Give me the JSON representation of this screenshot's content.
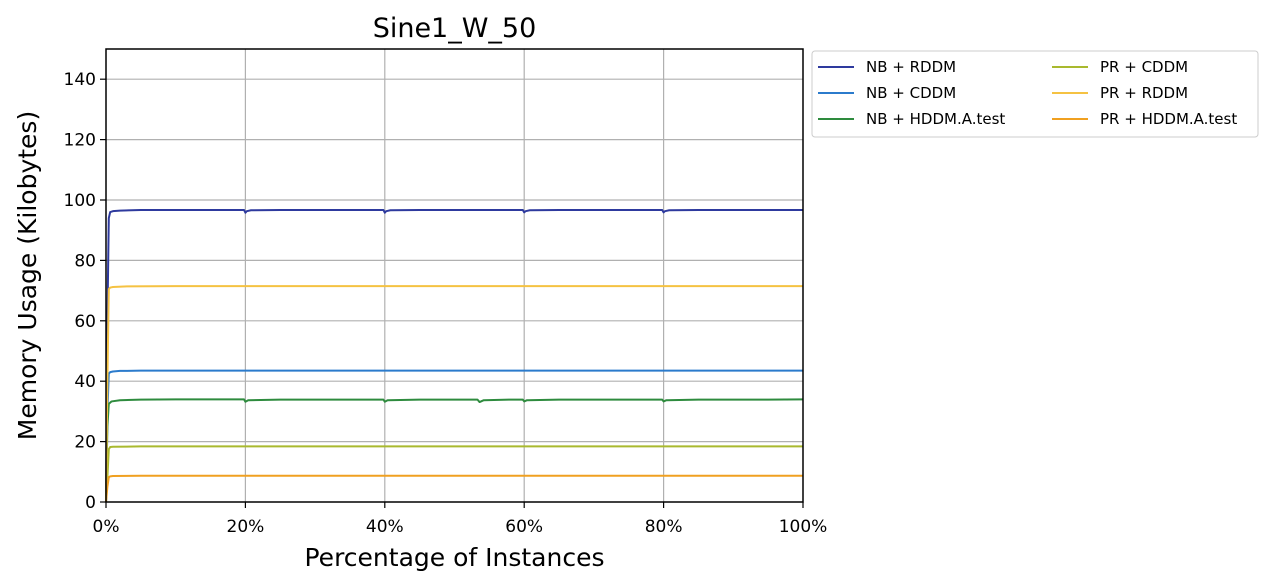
{
  "chart_data": {
    "type": "line",
    "title": "Sine1_W_50",
    "xlabel": "Percentage of Instances",
    "ylabel": "Memory Usage (Kilobytes)",
    "xlim": [
      0,
      100
    ],
    "ylim": [
      0,
      150
    ],
    "xticks": [
      0,
      20,
      40,
      60,
      80,
      100
    ],
    "xtick_labels": [
      "0%",
      "20%",
      "40%",
      "60%",
      "80%",
      "100%"
    ],
    "yticks": [
      0,
      20,
      40,
      60,
      80,
      100,
      120,
      140
    ],
    "ytick_labels": [
      "0",
      "20",
      "40",
      "60",
      "80",
      "100",
      "120",
      "140"
    ],
    "grid": true,
    "legend_position": "outside-right-top",
    "legend_columns": 2,
    "series": [
      {
        "name": "NB + RDDM",
        "color": "#2e3a9e",
        "x": [
          0,
          0.2,
          0.4,
          0.6,
          1,
          2,
          5,
          10,
          19.8,
          20,
          20.2,
          20.8,
          25,
          30,
          39.8,
          40,
          40.2,
          40.8,
          45,
          50,
          59.8,
          60,
          60.2,
          60.8,
          65,
          70,
          79.8,
          80,
          80.2,
          80.8,
          85,
          90,
          95,
          100
        ],
        "y": [
          0,
          60,
          94,
          96,
          96.3,
          96.5,
          96.7,
          96.7,
          96.7,
          95.8,
          96.3,
          96.6,
          96.7,
          96.7,
          96.7,
          95.8,
          96.3,
          96.6,
          96.7,
          96.7,
          96.7,
          95.9,
          96.3,
          96.6,
          96.7,
          96.7,
          96.7,
          95.9,
          96.3,
          96.6,
          96.7,
          96.7,
          96.7,
          96.7
        ]
      },
      {
        "name": "NB + CDDM",
        "color": "#2b7bcc",
        "x": [
          0,
          0.2,
          0.4,
          0.6,
          1,
          2,
          5,
          20,
          40,
          60,
          80,
          100
        ],
        "y": [
          0,
          30,
          42.5,
          43,
          43.2,
          43.4,
          43.5,
          43.5,
          43.5,
          43.5,
          43.5,
          43.5
        ]
      },
      {
        "name": "NB + HDDM.A.test",
        "color": "#2e8b3e",
        "x": [
          0,
          0.2,
          0.4,
          0.8,
          2,
          5,
          10,
          19.8,
          20,
          20.4,
          25,
          30,
          39.8,
          40,
          40.4,
          45,
          50,
          53.3,
          53.6,
          54.2,
          58,
          59.8,
          60,
          60.4,
          65,
          70,
          79.8,
          80,
          80.4,
          85,
          90,
          95,
          100
        ],
        "y": [
          0,
          25,
          32.5,
          33.3,
          33.7,
          33.9,
          34,
          34,
          33.2,
          33.7,
          33.9,
          33.9,
          33.9,
          33.2,
          33.7,
          33.9,
          33.9,
          33.9,
          33.1,
          33.7,
          33.9,
          33.9,
          33.3,
          33.7,
          33.9,
          33.9,
          33.9,
          33.3,
          33.7,
          33.9,
          33.9,
          33.9,
          34
        ]
      },
      {
        "name": "PR + CDDM",
        "color": "#a9b92e",
        "x": [
          0,
          0.2,
          0.4,
          0.6,
          1,
          5,
          20,
          40,
          60,
          80,
          100
        ],
        "y": [
          0,
          8,
          17.5,
          18.2,
          18.3,
          18.4,
          18.4,
          18.4,
          18.4,
          18.4,
          18.4
        ]
      },
      {
        "name": "PR + RDDM",
        "color": "#f5c242",
        "x": [
          0,
          0.2,
          0.4,
          0.6,
          1,
          3,
          10,
          20,
          40,
          60,
          80,
          100
        ],
        "y": [
          0,
          40,
          70.5,
          71,
          71.2,
          71.4,
          71.5,
          71.5,
          71.5,
          71.5,
          71.5,
          71.5
        ]
      },
      {
        "name": "PR + HDDM.A.test",
        "color": "#f0a020",
        "x": [
          0,
          0.2,
          0.4,
          0.6,
          1,
          5,
          20,
          40,
          60,
          80,
          100
        ],
        "y": [
          0,
          5,
          8.2,
          8.5,
          8.6,
          8.7,
          8.7,
          8.7,
          8.7,
          8.7,
          8.7
        ]
      }
    ]
  }
}
